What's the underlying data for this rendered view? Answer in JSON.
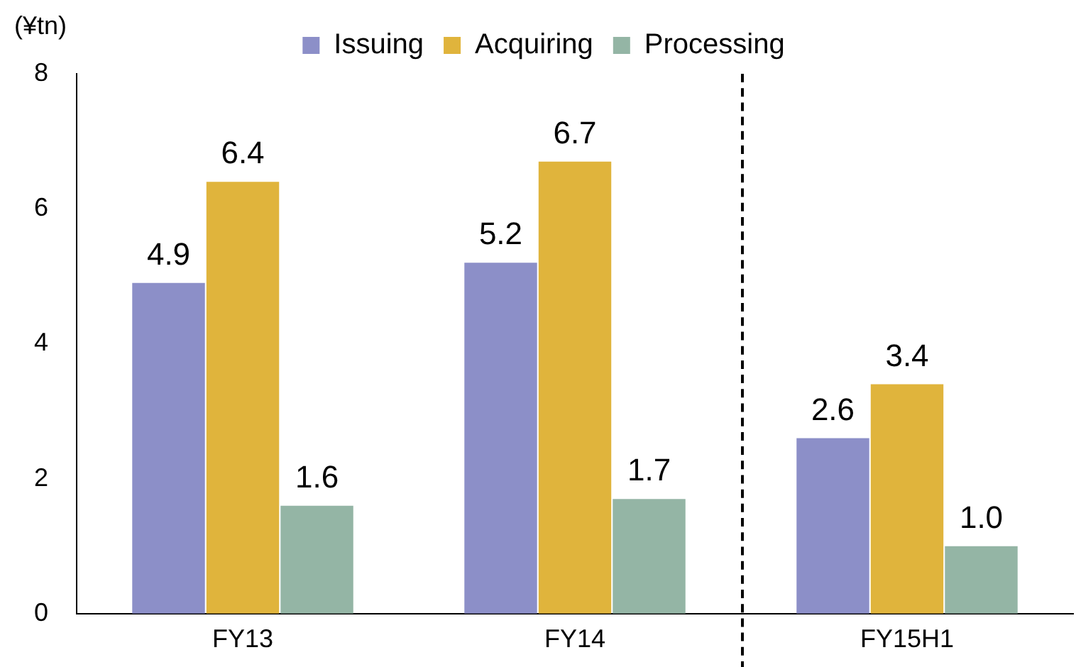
{
  "chart_data": {
    "type": "bar",
    "ylabel": "(¥tn)",
    "categories": [
      "FY13",
      "FY14",
      "FY15H1"
    ],
    "series": [
      {
        "name": "Issuing",
        "color": "#8c8fc8",
        "values": [
          4.9,
          5.2,
          2.6
        ],
        "value_labels": [
          "4.9",
          "5.2",
          "2.6"
        ]
      },
      {
        "name": "Acquiring",
        "color": "#e0b43c",
        "values": [
          6.4,
          6.7,
          3.4
        ],
        "value_labels": [
          "6.4",
          "6.7",
          "3.4"
        ]
      },
      {
        "name": "Processing",
        "color": "#94b5a5",
        "values": [
          1.6,
          1.7,
          1.0
        ],
        "value_labels": [
          "1.6",
          "1.7",
          "1.0"
        ]
      }
    ],
    "ylim": [
      0,
      8
    ],
    "yticks": [
      0,
      2,
      4,
      6,
      8
    ],
    "grid": false,
    "legend": "top"
  }
}
